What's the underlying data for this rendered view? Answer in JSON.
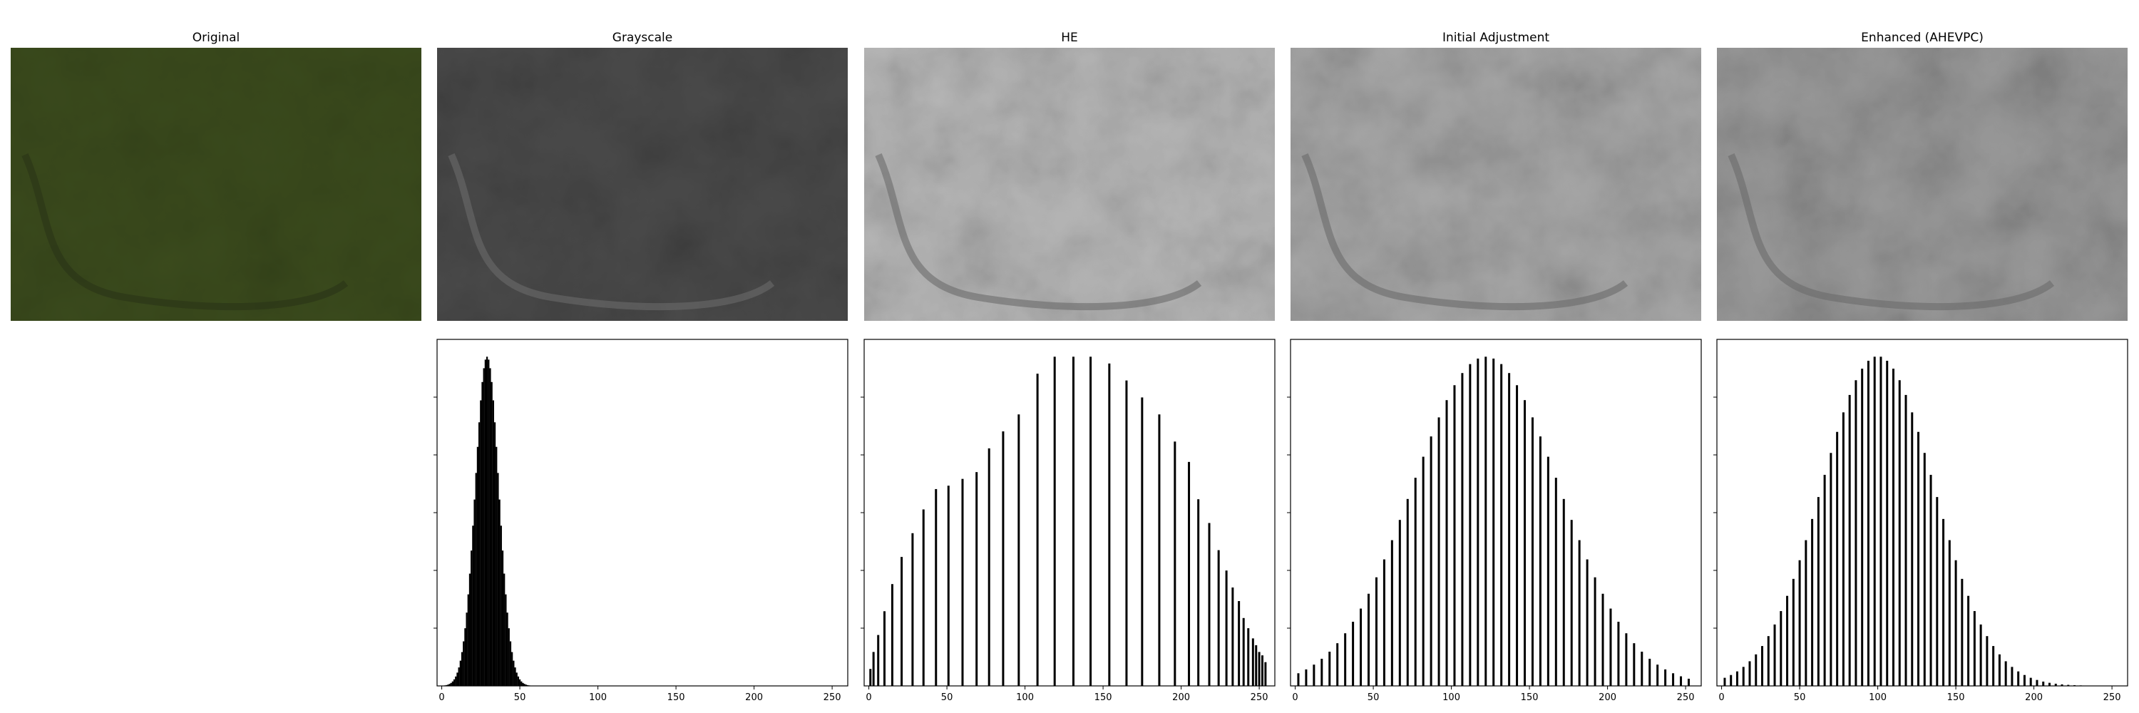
{
  "panels": [
    {
      "title": "Original",
      "tint": "#3a4a1c"
    },
    {
      "title": "Grayscale",
      "tint": "#4a4a4a"
    },
    {
      "title": "HE",
      "tint": "#b8b8b8"
    },
    {
      "title": "Initial Adjustment",
      "tint": "#a8a8a8"
    },
    {
      "title": "Enhanced (AHEVPC)",
      "tint": "#9a9a9a"
    }
  ],
  "chart_data": [
    {
      "type": "bar",
      "name": "Grayscale",
      "xlim": [
        0,
        255
      ],
      "xticks": [
        "0",
        "50",
        "100",
        "150",
        "200",
        "250"
      ],
      "shape": {
        "kind": "gaussian",
        "mean": 29,
        "sd": 7.5,
        "min_x": 0,
        "max_x": 255,
        "step": 1
      },
      "values_note": "",
      "grid": false
    },
    {
      "type": "bar",
      "name": "HE",
      "xlim": [
        0,
        255
      ],
      "xticks": [
        "0",
        "50",
        "100",
        "150",
        "200",
        "250"
      ],
      "x": [
        1,
        3,
        6,
        10,
        15,
        21,
        28,
        35,
        43,
        51,
        60,
        69,
        77,
        86,
        96,
        108,
        119,
        131,
        142,
        154,
        165,
        175,
        186,
        196,
        205,
        211,
        218,
        224,
        229,
        233,
        237,
        240,
        243,
        246,
        248,
        250,
        252,
        254
      ],
      "values": [
        0.05,
        0.1,
        0.15,
        0.22,
        0.3,
        0.38,
        0.45,
        0.52,
        0.58,
        0.59,
        0.61,
        0.63,
        0.7,
        0.75,
        0.8,
        0.92,
        0.97,
        0.97,
        0.97,
        0.95,
        0.9,
        0.85,
        0.8,
        0.72,
        0.66,
        0.55,
        0.48,
        0.4,
        0.34,
        0.29,
        0.25,
        0.2,
        0.17,
        0.14,
        0.12,
        0.1,
        0.09,
        0.07
      ]
    },
    {
      "type": "bar",
      "name": "Initial Adjustment",
      "xlim": [
        0,
        255
      ],
      "xticks": [
        "0",
        "50",
        "100",
        "150",
        "200",
        "250"
      ],
      "shape": {
        "kind": "gaussian_bars",
        "mean": 122,
        "sd": 47,
        "min_x": 2,
        "max_x": 252,
        "step": 5
      },
      "grid": false
    },
    {
      "type": "bar",
      "name": "Enhanced (AHEVPC)",
      "xlim": [
        0,
        255
      ],
      "xticks": [
        "0",
        "50",
        "100",
        "150",
        "200",
        "250"
      ],
      "shape": {
        "kind": "gaussian_bars",
        "mean": 100,
        "sd": 36,
        "min_x": 2,
        "max_x": 252,
        "step": 4
      },
      "grid": false
    }
  ]
}
